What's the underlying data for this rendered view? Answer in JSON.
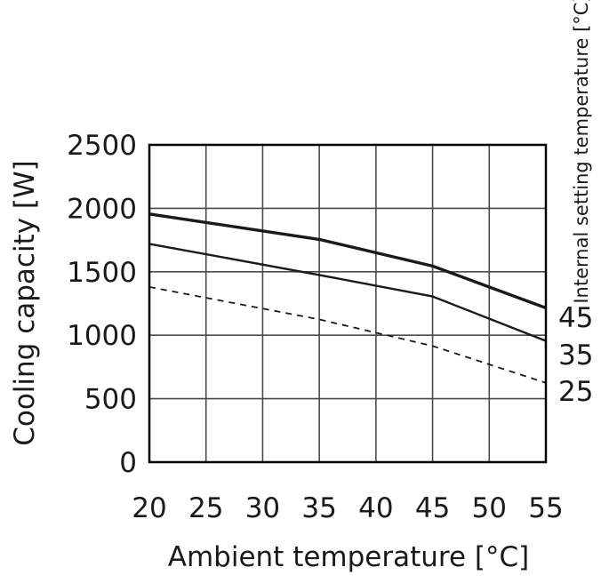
{
  "chart_data": {
    "type": "line",
    "xlabel": "Ambient temperature [°C]",
    "ylabel": "Cooling capacity [W]",
    "legend_title": "Internal setting temperature [°C]",
    "legend_placement": "right of plot, labels at line ends",
    "grid": true,
    "xlim": [
      20,
      55
    ],
    "ylim": [
      0,
      2500
    ],
    "x_ticks": [
      20,
      25,
      30,
      35,
      40,
      45,
      50,
      55
    ],
    "y_ticks": [
      0,
      500,
      1000,
      1500,
      2000,
      2500
    ],
    "x": [
      20,
      35,
      45,
      55
    ],
    "series": [
      {
        "name": "45",
        "style": "solid-bold",
        "values": [
          1955,
          1755,
          1545,
          1215
        ]
      },
      {
        "name": "35",
        "style": "solid",
        "values": [
          1720,
          1475,
          1305,
          955
        ]
      },
      {
        "name": "25",
        "style": "dashed",
        "values": [
          1380,
          1125,
          915,
          625
        ]
      }
    ],
    "colors": {
      "lines": "#1a1a1a",
      "grid": "#4a4a4a",
      "frame": "#000000"
    }
  }
}
